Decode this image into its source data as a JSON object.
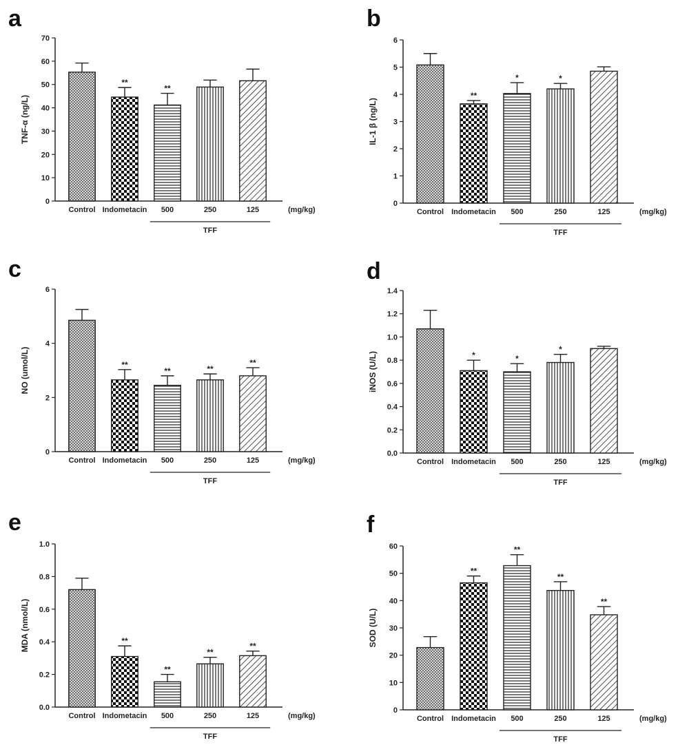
{
  "colors": {
    "ink": "#222222",
    "fill": "#ffffff"
  },
  "chart_data": [
    {
      "panel": "a",
      "type": "bar",
      "ylabel": "TNF-α (ng/L)",
      "ylim": [
        0,
        70
      ],
      "yticks": [
        "0",
        "10",
        "20",
        "30",
        "40",
        "50",
        "60",
        "70"
      ],
      "categories": [
        "Control",
        "Indometacin",
        "500",
        "250",
        "125"
      ],
      "unit_label": "(mg/kg)",
      "group_label": "TFF",
      "values": [
        55.3,
        44.6,
        41.2,
        48.9,
        51.6
      ],
      "errors": [
        3.9,
        4.1,
        5.0,
        3.0,
        5.0
      ],
      "significance": [
        "",
        "**",
        "**",
        "",
        ""
      ]
    },
    {
      "panel": "b",
      "type": "bar",
      "ylabel": "IL-1 β (ng/L)",
      "ylim": [
        0,
        6
      ],
      "yticks": [
        "0",
        "1",
        "2",
        "3",
        "4",
        "5",
        "6"
      ],
      "categories": [
        "Control",
        "Indometacin",
        "500",
        "250",
        "125"
      ],
      "unit_label": "(mg/kg)",
      "group_label": "TFF",
      "values": [
        5.08,
        3.65,
        4.03,
        4.2,
        4.85
      ],
      "errors": [
        0.42,
        0.12,
        0.4,
        0.2,
        0.16
      ],
      "significance": [
        "",
        "**",
        "*",
        "*",
        ""
      ]
    },
    {
      "panel": "c",
      "type": "bar",
      "ylabel": "NO (umol/L)",
      "ylim": [
        0,
        6
      ],
      "yticks": [
        "0",
        "2",
        "4",
        "6"
      ],
      "categories": [
        "Control",
        "Indometacin",
        "500",
        "250",
        "125"
      ],
      "unit_label": "(mg/kg)",
      "group_label": "TFF",
      "values": [
        4.85,
        2.65,
        2.45,
        2.65,
        2.8
      ],
      "errors": [
        0.4,
        0.38,
        0.35,
        0.22,
        0.3
      ],
      "significance": [
        "",
        "**",
        "**",
        "**",
        "**"
      ]
    },
    {
      "panel": "d",
      "type": "bar",
      "ylabel": "iNOS (U/L)",
      "ylim": [
        0,
        1.4
      ],
      "yticks": [
        "0.0",
        "0.2",
        "0.4",
        "0.6",
        "0.8",
        "1.0",
        "1.2",
        "1.4"
      ],
      "categories": [
        "Control",
        "Indometacin",
        "500",
        "250",
        "125"
      ],
      "unit_label": "(mg/kg)",
      "group_label": "TFF",
      "values": [
        1.07,
        0.71,
        0.7,
        0.78,
        0.9
      ],
      "errors": [
        0.16,
        0.09,
        0.07,
        0.07,
        0.02
      ],
      "significance": [
        "",
        "*",
        "*",
        "*",
        ""
      ]
    },
    {
      "panel": "e",
      "type": "bar",
      "ylabel": "MDA (nmol/L)",
      "ylim": [
        0,
        1.0
      ],
      "yticks": [
        "0.0",
        "0.2",
        "0.4",
        "0.6",
        "0.8",
        "1.0"
      ],
      "categories": [
        "Control",
        "Indometacin",
        "500",
        "250",
        "125"
      ],
      "unit_label": "(mg/kg)",
      "group_label": "TFF",
      "values": [
        0.72,
        0.31,
        0.155,
        0.265,
        0.315
      ],
      "errors": [
        0.07,
        0.065,
        0.045,
        0.04,
        0.028
      ],
      "significance": [
        "",
        "**",
        "**",
        "**",
        "**"
      ]
    },
    {
      "panel": "f",
      "type": "bar",
      "ylabel": "SOD (U/L)",
      "ylim": [
        0,
        60
      ],
      "yticks": [
        "0",
        "10",
        "20",
        "30",
        "40",
        "50",
        "60"
      ],
      "categories": [
        "Control",
        "Indometacin",
        "500",
        "250",
        "125"
      ],
      "unit_label": "(mg/kg)",
      "group_label": "TFF",
      "values": [
        22.8,
        46.5,
        52.8,
        43.7,
        34.8
      ],
      "errors": [
        4.0,
        2.5,
        4.0,
        3.2,
        3.0
      ],
      "significance": [
        "",
        "**",
        "**",
        "**",
        "**"
      ]
    }
  ]
}
